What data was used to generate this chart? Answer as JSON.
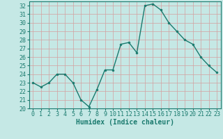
{
  "x": [
    0,
    1,
    2,
    3,
    4,
    5,
    6,
    7,
    8,
    9,
    10,
    11,
    12,
    13,
    14,
    15,
    16,
    17,
    18,
    19,
    20,
    21,
    22,
    23
  ],
  "y": [
    23.0,
    22.5,
    23.0,
    24.0,
    24.0,
    23.0,
    21.0,
    20.2,
    22.2,
    24.5,
    24.5,
    27.5,
    27.7,
    26.5,
    32.0,
    32.2,
    31.5,
    30.0,
    29.0,
    28.0,
    27.5,
    26.0,
    25.0,
    24.2
  ],
  "line_color": "#1a7a6e",
  "marker": "o",
  "marker_size": 2.0,
  "bg_color": "#c5e8e5",
  "grid_color": "#b0d8d4",
  "xlabel": "Humidex (Indice chaleur)",
  "ylim": [
    20,
    32.5
  ],
  "yticks": [
    20,
    21,
    22,
    23,
    24,
    25,
    26,
    27,
    28,
    29,
    30,
    31,
    32
  ],
  "xticks": [
    0,
    1,
    2,
    3,
    4,
    5,
    6,
    7,
    8,
    9,
    10,
    11,
    12,
    13,
    14,
    15,
    16,
    17,
    18,
    19,
    20,
    21,
    22,
    23
  ],
  "tick_color": "#1a7a6e",
  "label_fontsize": 7.0,
  "tick_fontsize": 6.0,
  "line_width": 1.0
}
